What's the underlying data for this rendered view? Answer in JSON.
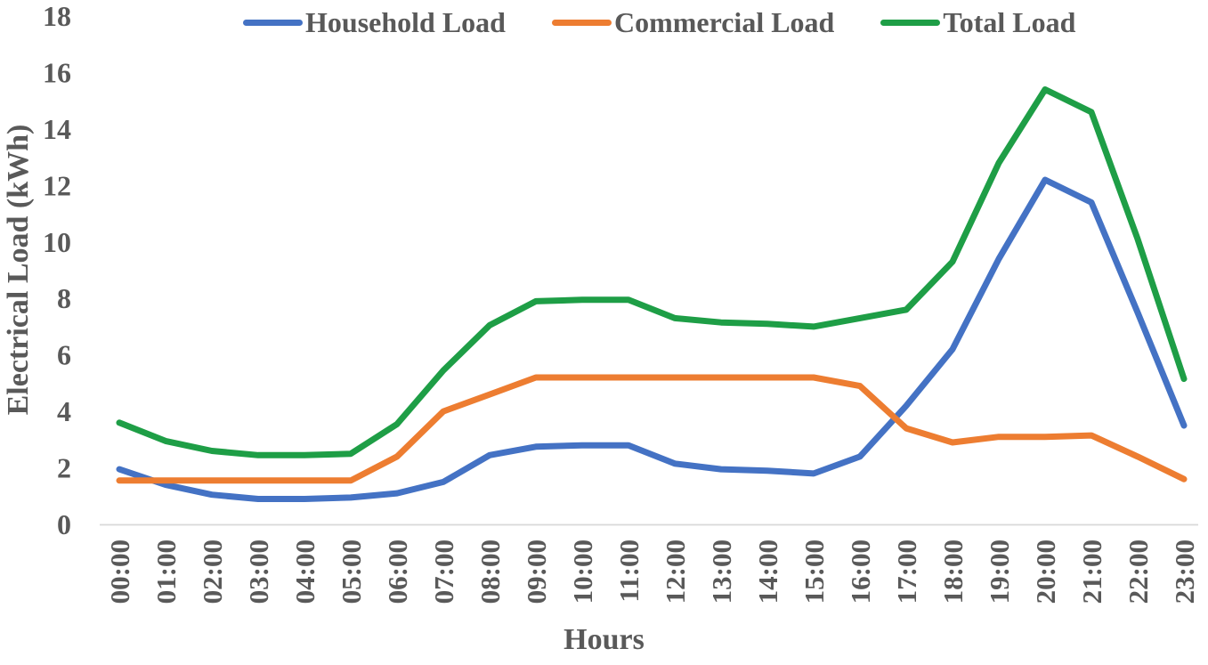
{
  "chart_data": {
    "type": "line",
    "title": "",
    "xlabel": "Hours",
    "ylabel": "Electrical Load (kWh)",
    "x": [
      "00:00",
      "01:00",
      "02:00",
      "03:00",
      "04:00",
      "05:00",
      "06:00",
      "07:00",
      "08:00",
      "09:00",
      "10:00",
      "11:00",
      "12:00",
      "13:00",
      "14:00",
      "15:00",
      "16:00",
      "17:00",
      "18:00",
      "19:00",
      "20:00",
      "21:00",
      "22:00",
      "23:00"
    ],
    "series": [
      {
        "name": "Household Load",
        "color": "#4472C4",
        "values": [
          1.95,
          1.4,
          1.05,
          0.9,
          0.9,
          0.95,
          1.1,
          1.5,
          2.45,
          2.75,
          2.8,
          2.8,
          2.15,
          1.95,
          1.9,
          1.8,
          2.4,
          4.2,
          6.2,
          9.4,
          12.2,
          11.4,
          7.5,
          3.5
        ]
      },
      {
        "name": "Commercial Load",
        "color": "#ED7D31",
        "values": [
          1.55,
          1.55,
          1.55,
          1.55,
          1.55,
          1.55,
          2.4,
          4.0,
          4.6,
          5.2,
          5.2,
          5.2,
          5.2,
          5.2,
          5.2,
          5.2,
          4.9,
          3.4,
          2.9,
          3.1,
          3.1,
          3.15,
          2.4,
          1.6
        ]
      },
      {
        "name": "Total Load",
        "color": "#1E9E46",
        "values": [
          3.6,
          2.95,
          2.6,
          2.45,
          2.45,
          2.5,
          3.55,
          5.45,
          7.05,
          7.9,
          7.95,
          7.95,
          7.3,
          7.15,
          7.1,
          7.0,
          7.3,
          7.6,
          9.3,
          12.8,
          15.4,
          14.6,
          10.1,
          5.15
        ]
      }
    ],
    "ylim": [
      0,
      18
    ],
    "ytick_step": 2,
    "grid": false,
    "legend_position": "top"
  },
  "colors": {
    "text": "#595959",
    "axis_line": "#D9D9D9",
    "background": "#FFFFFF"
  }
}
